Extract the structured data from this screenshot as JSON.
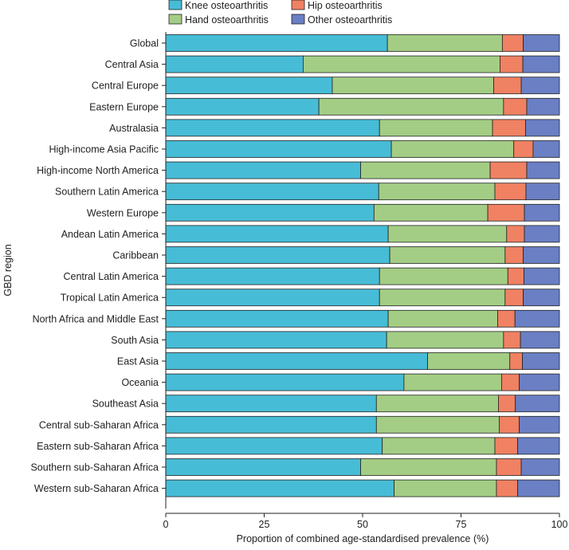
{
  "chart_data": {
    "type": "bar",
    "orientation": "horizontal",
    "stacked": true,
    "title": "",
    "xlabel": "Proportion of combined age-standardised prevalence (%)",
    "ylabel": "GBD region",
    "xlim": [
      0,
      100
    ],
    "xticks": [
      "0",
      "25",
      "50",
      "75",
      "100"
    ],
    "legend_position": "top",
    "categories": [
      "Global",
      "Central Asia",
      "Central Europe",
      "Eastern Europe",
      "Australasia",
      "High-income Asia Pacific",
      "High-income North America",
      "Southern Latin America",
      "Western Europe",
      "Andean Latin America",
      "Caribbean",
      "Central Latin America",
      "Tropical Latin America",
      "North Africa and Middle East",
      "South Asia",
      "East Asia",
      "Oceania",
      "Southeast Asia",
      "Central sub-Saharan Africa",
      "Eastern sub-Saharan Africa",
      "Southern sub-Saharan Africa",
      "Western sub-Saharan Africa"
    ],
    "series": [
      {
        "name": "Knee osteoarthritis",
        "color": "#47bcd6",
        "values": [
          56.3,
          34.9,
          42.3,
          38.9,
          54.3,
          57.3,
          49.5,
          54.1,
          52.9,
          56.5,
          56.9,
          54.3,
          54.3,
          56.5,
          56.1,
          66.5,
          60.5,
          53.5,
          53.5,
          55.0,
          49.5,
          58.0
        ]
      },
      {
        "name": "Hand osteoarthritis",
        "color": "#a3cd84",
        "values": [
          29.2,
          50.0,
          41.0,
          46.9,
          28.7,
          31.1,
          32.9,
          29.5,
          28.9,
          30.1,
          29.3,
          32.6,
          31.9,
          27.8,
          29.7,
          20.9,
          24.8,
          31.0,
          31.2,
          28.6,
          34.5,
          26.0
        ]
      },
      {
        "name": "Hip osteoarthritis",
        "color": "#f08163",
        "values": [
          5.3,
          5.8,
          7.0,
          5.9,
          8.4,
          4.9,
          9.3,
          7.9,
          9.3,
          4.5,
          4.6,
          4.1,
          4.6,
          4.4,
          4.3,
          3.2,
          4.5,
          4.3,
          5.1,
          5.8,
          6.3,
          5.4
        ]
      },
      {
        "name": "Other osteoarthritis",
        "color": "#6a7fc4",
        "values": [
          9.2,
          9.3,
          9.7,
          8.3,
          8.6,
          6.7,
          8.3,
          8.5,
          8.9,
          8.9,
          9.2,
          9.0,
          9.2,
          11.3,
          9.9,
          9.4,
          10.2,
          11.2,
          10.2,
          10.6,
          9.7,
          10.6
        ]
      }
    ]
  }
}
